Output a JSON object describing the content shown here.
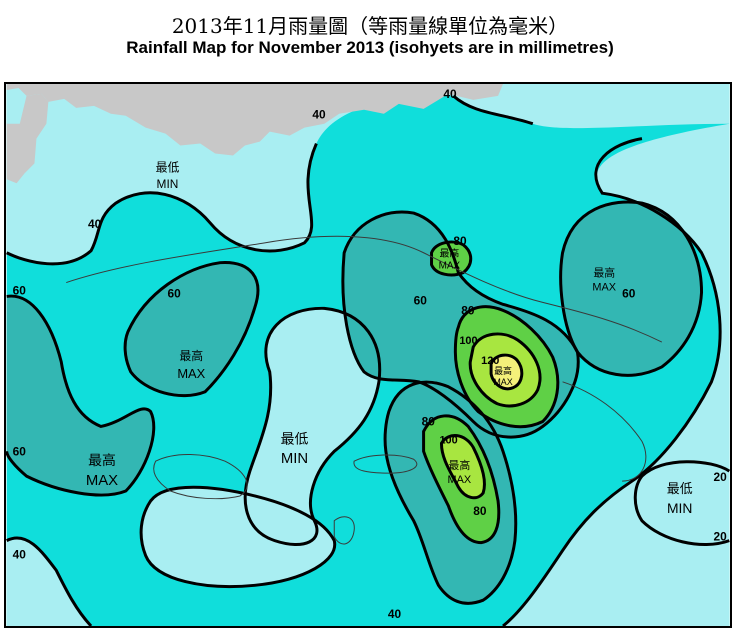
{
  "title_zh": "2013年11月雨量圖（等雨量線單位為毫米）",
  "title_en": "Rainfall Map for November 2013 (isohyets are in millimetres)",
  "colors": {
    "sea": "#a9eef2",
    "band_40_60": "#10dedb",
    "band_60_80": "#33b7b3",
    "band_80_100": "#5fd046",
    "band_100_120": "#a8e640",
    "band_120_plus": "#f4f07a",
    "mainland": "#c8c8c8",
    "isohyet": "#000000"
  },
  "isohyet_labels": [
    {
      "id": "top-40",
      "text": "40"
    },
    {
      "id": "top-left-40",
      "text": "40"
    },
    {
      "id": "left-40",
      "text": "40"
    },
    {
      "id": "west-60",
      "text": "60"
    },
    {
      "id": "west-60b",
      "text": "60"
    },
    {
      "id": "west-60c",
      "text": "60"
    },
    {
      "id": "center-60",
      "text": "60"
    },
    {
      "id": "ne-60",
      "text": "60"
    },
    {
      "id": "ne-max-80",
      "text": "80"
    },
    {
      "id": "center-80",
      "text": "80"
    },
    {
      "id": "center-100",
      "text": "100"
    },
    {
      "id": "center-120",
      "text": "120"
    },
    {
      "id": "south-80",
      "text": "80"
    },
    {
      "id": "south-100",
      "text": "100"
    },
    {
      "id": "south-80b",
      "text": "80"
    },
    {
      "id": "bottom-40",
      "text": "40"
    },
    {
      "id": "bottom-40b",
      "text": "40"
    },
    {
      "id": "east-20",
      "text": "20"
    },
    {
      "id": "east-20b",
      "text": "20"
    }
  ],
  "extreme_labels": [
    {
      "id": "min-north",
      "zh": "最低",
      "en": "MIN"
    },
    {
      "id": "max-west",
      "zh": "最高",
      "en": "MAX"
    },
    {
      "id": "max-southwest",
      "zh": "最高",
      "en": "MAX"
    },
    {
      "id": "min-center",
      "zh": "最低",
      "en": "MIN"
    },
    {
      "id": "max-north-center",
      "zh": "最高",
      "en": "MAX"
    },
    {
      "id": "max-center",
      "zh": "最高",
      "en": "MAX"
    },
    {
      "id": "max-south",
      "zh": "最高",
      "en": "MAX"
    },
    {
      "id": "max-northeast",
      "zh": "最高",
      "en": "MAX"
    },
    {
      "id": "min-east",
      "zh": "最低",
      "en": "MIN"
    }
  ]
}
